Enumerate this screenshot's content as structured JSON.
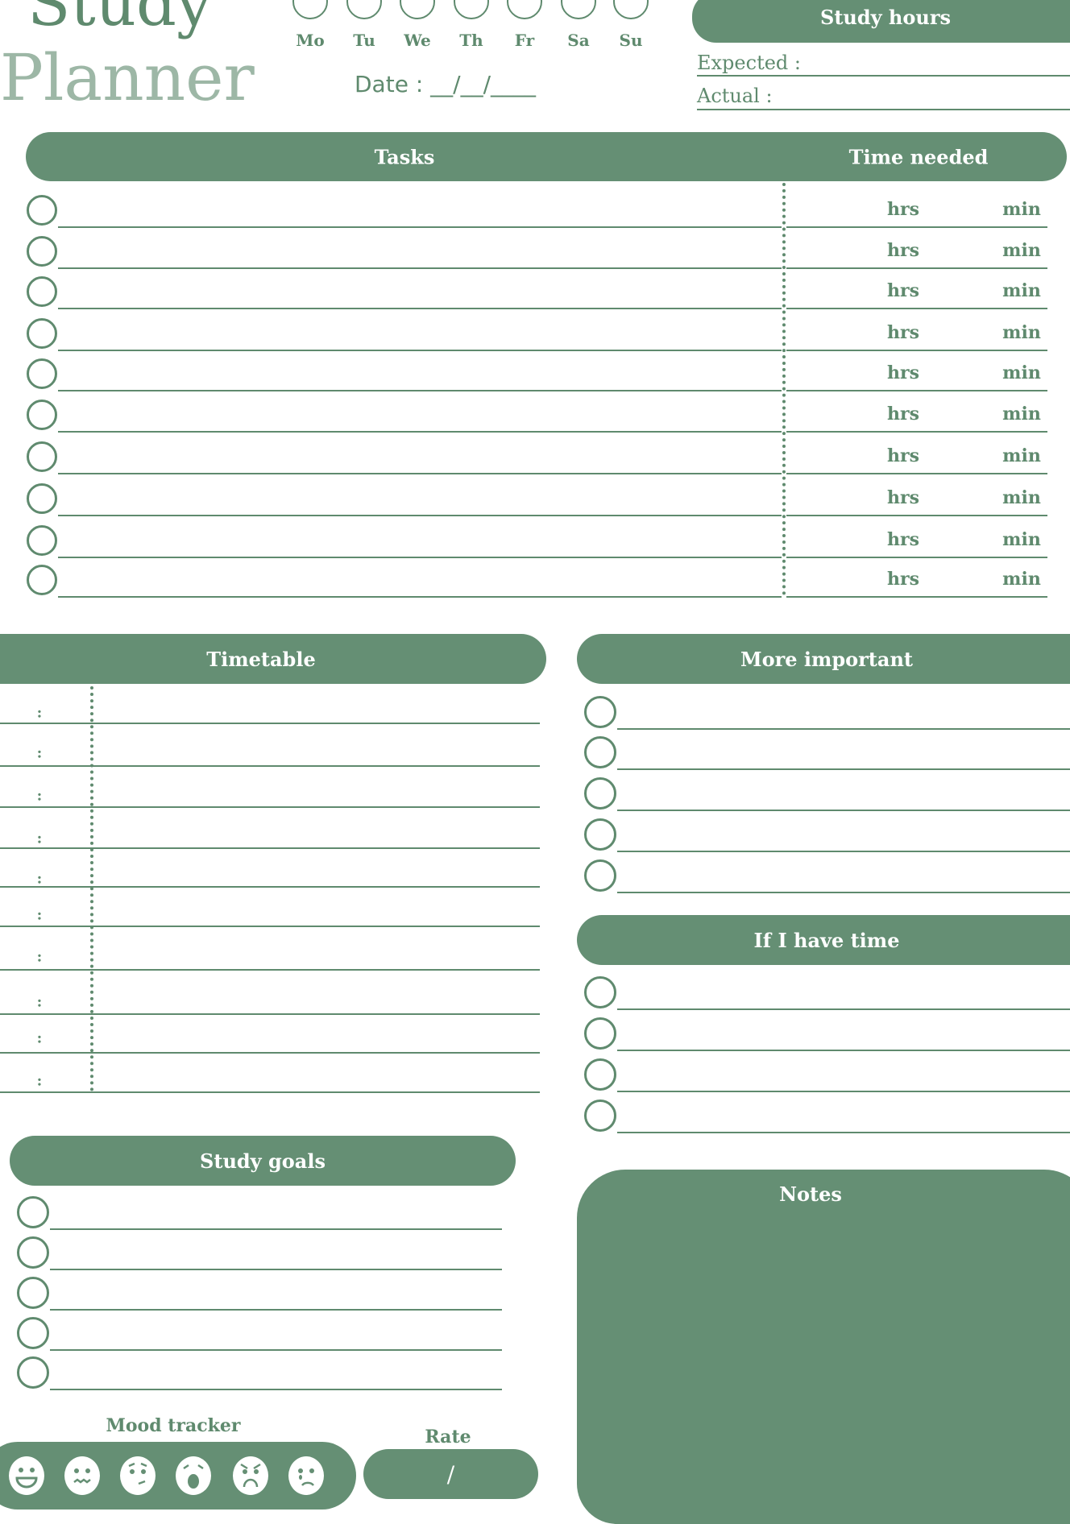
{
  "header": {
    "title_line1": "Study",
    "title_line2": "Planner",
    "days": [
      "Mo",
      "Tu",
      "We",
      "Th",
      "Fr",
      "Sa",
      "Su"
    ],
    "date_label": "Date : __/__/____"
  },
  "study_hours": {
    "title": "Study hours",
    "expected_label": "Expected :",
    "actual_label": "Actual :"
  },
  "tasks": {
    "title": "Tasks",
    "time_title": "Time needed",
    "hrs_label": "hrs",
    "min_label": "min",
    "row_count": 10
  },
  "timetable": {
    "title": "Timetable",
    "separator": ":",
    "row_count": 10
  },
  "more_important": {
    "title": "More important",
    "row_count": 5
  },
  "if_time": {
    "title": "If I have time",
    "row_count": 4
  },
  "study_goals": {
    "title": "Study goals",
    "row_count": 5
  },
  "mood_tracker": {
    "title": "Mood tracker",
    "moods": [
      "happy-face-icon",
      "wavy-mouth-face-icon",
      "confused-face-icon",
      "surprised-face-icon",
      "angry-face-icon",
      "crying-face-icon"
    ]
  },
  "rate": {
    "title": "Rate",
    "separator": "/"
  },
  "notes": {
    "title": "Notes"
  },
  "colors": {
    "accent": "#658f74",
    "title_dark": "#5f8a6e",
    "title_light": "#9db7a6"
  }
}
